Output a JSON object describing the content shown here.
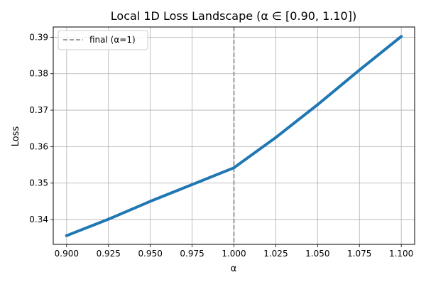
{
  "chart_data": {
    "type": "line",
    "title": "Local 1D Loss Landscape (α ∈ [0.90, 1.10])",
    "xlabel": "α",
    "ylabel": "Loss",
    "xlim": [
      0.892,
      1.108
    ],
    "ylim": [
      0.3332,
      0.3928
    ],
    "x_ticks": [
      0.9,
      0.925,
      0.95,
      0.975,
      1.0,
      1.025,
      1.05,
      1.075,
      1.1
    ],
    "x_tick_labels": [
      "0.900",
      "0.925",
      "0.950",
      "0.975",
      "1.000",
      "1.025",
      "1.050",
      "1.075",
      "1.100"
    ],
    "y_ticks": [
      0.34,
      0.35,
      0.36,
      0.37,
      0.38,
      0.39
    ],
    "y_tick_labels": [
      "0.34",
      "0.35",
      "0.36",
      "0.37",
      "0.38",
      "0.39"
    ],
    "grid": true,
    "legend": {
      "position": "top-left",
      "entries": [
        {
          "label": "final (α=1)",
          "style": "dashed",
          "color": "#808080"
        }
      ]
    },
    "reference_line": {
      "x": 1.0,
      "label": "final (α=1)",
      "color": "#808080",
      "style": "dashed"
    },
    "series": [
      {
        "color": "#1f77b4",
        "x": [
          0.9,
          0.925,
          0.95,
          0.975,
          1.0,
          1.025,
          1.05,
          1.075,
          1.1
        ],
        "y": [
          0.3356,
          0.3401,
          0.345,
          0.3496,
          0.3542,
          0.3625,
          0.3715,
          0.381,
          0.3902
        ]
      }
    ]
  }
}
